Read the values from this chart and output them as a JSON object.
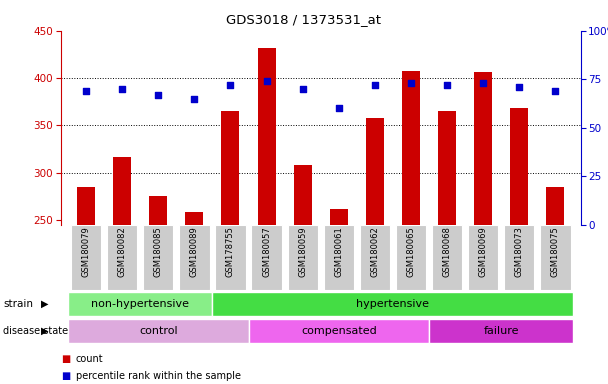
{
  "title": "GDS3018 / 1373531_at",
  "samples": [
    "GSM180079",
    "GSM180082",
    "GSM180085",
    "GSM180089",
    "GSM178755",
    "GSM180057",
    "GSM180059",
    "GSM180061",
    "GSM180062",
    "GSM180065",
    "GSM180068",
    "GSM180069",
    "GSM180073",
    "GSM180075"
  ],
  "counts": [
    285,
    316,
    275,
    258,
    365,
    432,
    308,
    262,
    358,
    407,
    365,
    406,
    368,
    285
  ],
  "percentile_ranks": [
    69,
    70,
    67,
    65,
    72,
    74,
    70,
    60,
    72,
    73,
    72,
    73,
    71,
    69
  ],
  "ylim_left": [
    245,
    450
  ],
  "ylim_right": [
    0,
    100
  ],
  "yticks_left": [
    250,
    300,
    350,
    400,
    450
  ],
  "yticks_right": [
    0,
    25,
    50,
    75,
    100
  ],
  "bar_color": "#cc0000",
  "marker_color": "#0000cc",
  "strain_groups": [
    {
      "label": "non-hypertensive",
      "start": 0,
      "end": 4,
      "color": "#88ee88"
    },
    {
      "label": "hypertensive",
      "start": 4,
      "end": 14,
      "color": "#44dd44"
    }
  ],
  "disease_groups": [
    {
      "label": "control",
      "start": 0,
      "end": 5,
      "color": "#ddaadd"
    },
    {
      "label": "compensated",
      "start": 5,
      "end": 10,
      "color": "#ee66ee"
    },
    {
      "label": "failure",
      "start": 10,
      "end": 14,
      "color": "#cc33cc"
    }
  ],
  "legend_count_label": "count",
  "legend_pct_label": "percentile rank within the sample",
  "ylabel_left_color": "#cc0000",
  "ylabel_right_color": "#0000cc",
  "bg_color": "#ffffff",
  "tick_bg_color": "#cccccc",
  "gridline_color": "#000000",
  "gridline_yticks": [
    300,
    350,
    400
  ],
  "bar_width": 0.5
}
